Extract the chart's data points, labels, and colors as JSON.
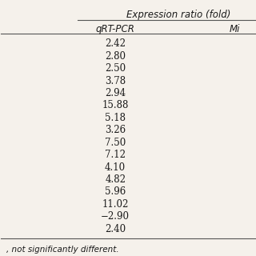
{
  "header_top": "Expression ratio (fold)",
  "col1_header": "qRT-PCR",
  "col2_header": "Mi",
  "values": [
    "2.42",
    "2.80",
    "2.50",
    "3.78",
    "2.94",
    "15.88",
    "5.18",
    "3.26",
    "7.50",
    "7.12",
    "4.10",
    "4.82",
    "5.96",
    "11.02",
    "−2.90",
    "2.40"
  ],
  "footnote": ", not significantly different.",
  "bg_color": "#f5f1eb",
  "text_color": "#1a1a1a",
  "header_line_color": "#555555",
  "font_size": 8.5,
  "header_font_size": 8.5
}
